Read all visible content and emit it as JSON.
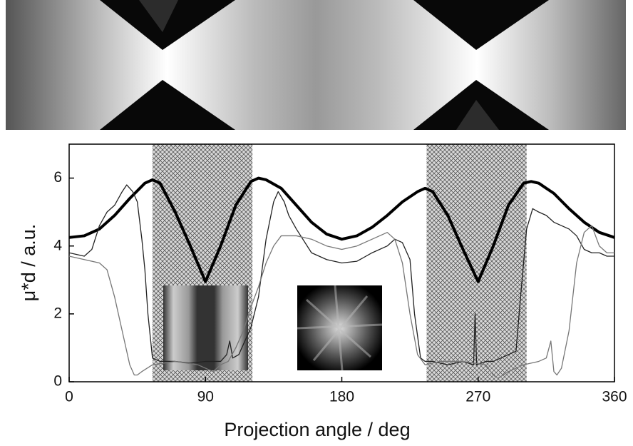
{
  "chart_data": {
    "type": "line",
    "x_label": "Projection angle / deg",
    "y_label": "μ*d / a.u.",
    "xlim": [
      0,
      360
    ],
    "ylim": [
      0,
      7
    ],
    "xticks": [
      0,
      90,
      180,
      270,
      360
    ],
    "yticks": [
      0,
      2,
      4,
      6
    ],
    "shaded_ranges": [
      [
        55,
        121
      ],
      [
        236,
        302
      ]
    ],
    "series": [
      {
        "color": "#000000",
        "width": 4,
        "x": [
          0,
          10,
          20,
          30,
          40,
          50,
          55,
          60,
          70,
          80,
          90,
          100,
          110,
          120,
          125,
          130,
          140,
          150,
          160,
          170,
          180,
          190,
          200,
          210,
          220,
          230,
          235,
          240,
          250,
          260,
          270,
          280,
          290,
          300,
          305,
          310,
          320,
          330,
          340,
          350,
          360
        ],
        "values": [
          4.25,
          4.3,
          4.5,
          4.9,
          5.4,
          5.85,
          5.95,
          5.85,
          5.0,
          4.0,
          2.95,
          4.0,
          5.2,
          5.9,
          6.0,
          5.95,
          5.7,
          5.2,
          4.7,
          4.35,
          4.2,
          4.3,
          4.55,
          4.9,
          5.3,
          5.6,
          5.7,
          5.6,
          4.9,
          3.9,
          2.95,
          4.0,
          5.2,
          5.85,
          5.9,
          5.85,
          5.55,
          5.1,
          4.7,
          4.4,
          4.25
        ]
      },
      {
        "color": "#222222",
        "width": 1.3,
        "x": [
          0,
          5,
          10,
          15,
          20,
          25,
          30,
          35,
          38,
          42,
          45,
          48,
          50,
          52,
          55,
          60,
          70,
          80,
          90,
          100,
          104,
          106,
          108,
          112,
          120,
          125,
          130,
          135,
          138,
          142,
          145,
          150,
          160,
          170,
          180,
          190,
          200,
          210,
          215,
          220,
          225,
          228,
          232,
          235,
          240,
          250,
          260,
          267,
          268,
          269,
          275,
          280,
          285,
          290,
          295,
          298,
          302,
          306,
          310,
          315,
          320,
          325,
          330,
          335,
          340,
          345,
          350,
          355,
          360
        ],
        "values": [
          3.8,
          3.75,
          3.7,
          3.9,
          4.6,
          5.0,
          5.2,
          5.6,
          5.8,
          5.6,
          5.3,
          4.2,
          3.3,
          2.0,
          0.7,
          0.6,
          0.6,
          0.55,
          0.6,
          0.6,
          0.8,
          1.2,
          0.7,
          0.8,
          1.6,
          2.5,
          4.2,
          5.3,
          5.6,
          5.3,
          4.9,
          4.5,
          3.8,
          3.6,
          3.5,
          3.55,
          3.8,
          4.0,
          4.2,
          4.1,
          3.6,
          2.0,
          0.7,
          0.6,
          0.6,
          0.5,
          0.6,
          0.5,
          2.0,
          0.5,
          0.6,
          0.6,
          0.7,
          0.8,
          0.9,
          2.5,
          4.5,
          5.1,
          5.0,
          4.9,
          4.7,
          4.6,
          4.5,
          4.3,
          3.9,
          3.8,
          3.8,
          3.7,
          3.7
        ]
      },
      {
        "color": "#777777",
        "width": 1.3,
        "x": [
          0,
          10,
          20,
          25,
          30,
          35,
          40,
          43,
          45,
          48,
          55,
          70,
          85,
          95,
          100,
          105,
          110,
          115,
          120,
          125,
          130,
          135,
          140,
          150,
          160,
          170,
          180,
          190,
          200,
          205,
          210,
          215,
          220,
          225,
          230,
          235,
          245,
          260,
          275,
          280,
          283,
          290,
          300,
          310,
          315,
          318,
          320,
          322,
          325,
          330,
          335,
          340,
          345,
          350,
          355,
          360
        ],
        "values": [
          3.7,
          3.6,
          3.5,
          3.3,
          2.5,
          1.5,
          0.5,
          0.2,
          0.2,
          0.3,
          0.5,
          0.6,
          0.5,
          0.3,
          0.5,
          0.6,
          1.0,
          1.5,
          2.2,
          2.8,
          3.5,
          4.0,
          4.3,
          4.3,
          4.2,
          4.0,
          3.9,
          4.0,
          4.2,
          4.3,
          4.4,
          4.2,
          3.5,
          2.0,
          0.8,
          0.5,
          0.6,
          0.6,
          0.5,
          0.2,
          0.1,
          0.3,
          0.5,
          0.6,
          0.7,
          1.2,
          0.3,
          0.2,
          0.4,
          1.5,
          3.5,
          4.4,
          4.6,
          4.0,
          3.8,
          3.8
        ]
      }
    ]
  }
}
